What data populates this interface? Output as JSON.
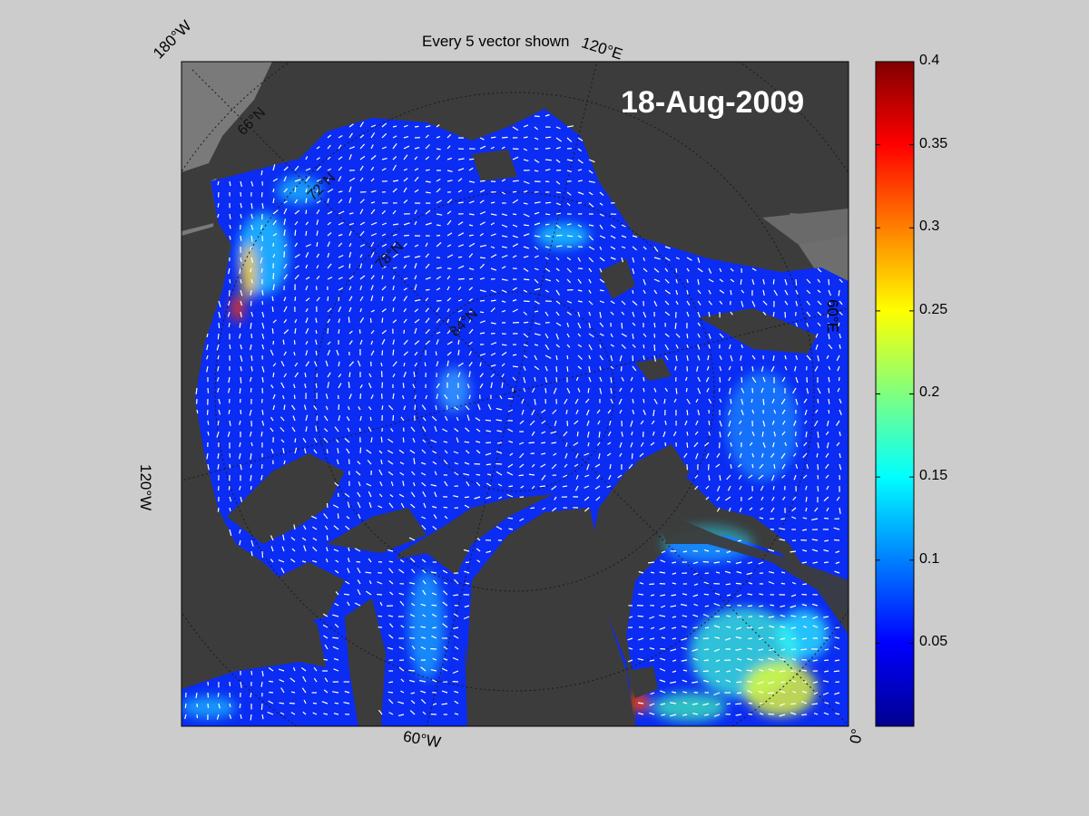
{
  "figure": {
    "title": "Every 5 vector shown",
    "date": "18-Aug-2009",
    "longitude_labels": {
      "lon_180w": "180°W",
      "lon_120e": "120°E",
      "lon_60e": "60°E",
      "lon_120w": "120°W",
      "lon_60w": "60°W",
      "lon_0": "0°"
    },
    "latitude_labels": [
      "66°N",
      "72°N",
      "78°N",
      "84°N"
    ]
  },
  "colorbar": {
    "colormap": "jet",
    "range": [
      0,
      0.4
    ],
    "tick_labels": [
      "0.4",
      "0.35",
      "0.3",
      "0.25",
      "0.2",
      "0.15",
      "0.1",
      "0.05"
    ]
  },
  "colors": {
    "background": "#cccccc",
    "land": "#3c3c3c",
    "ocean_low": "#0a2dff",
    "vector": "#ffffff"
  }
}
